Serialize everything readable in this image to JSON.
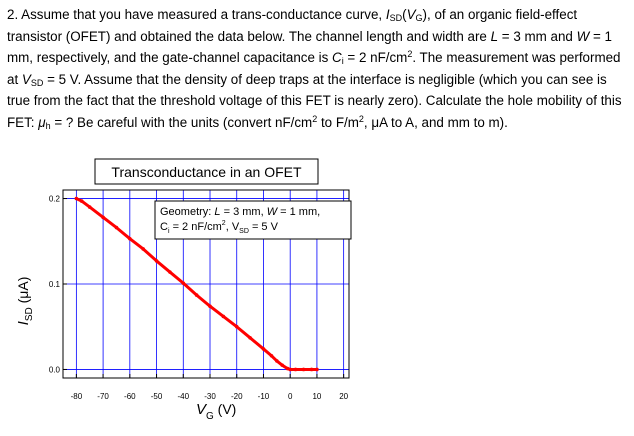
{
  "problem": {
    "number": "2.",
    "text_1": " Assume that you have measured a trans-conductance curve, ",
    "isd_sym": "I",
    "isd_sub": "SD",
    "text_2": "(",
    "vg_sym": "V",
    "vg_sub": "G",
    "text_3": "), of an organic field-effect transistor (OFET) and obtained the data below. The channel length and width are ",
    "L_sym": "L",
    "text_4": " = 3 mm and ",
    "W_sym": "W",
    "text_5": " = 1 mm, respectively, and the gate-channel capacitance is ",
    "C_sym": "C",
    "C_sub": "i",
    "text_6": " = 2 nF/cm",
    "sup2": "2",
    "text_7": ". The measurement was performed at ",
    "vsd_sym": "V",
    "vsd_sub": "SD",
    "text_8": " = 5 V. Assume that the density of deep traps at the interface is negligible (which you can see is true from the fact that the threshold voltage of this FET is nearly zero). Calculate the hole mobility of this FET: ",
    "mu_sym": "μ",
    "mu_sub": "h",
    "text_9": " = ? Be careful with the units (convert nF/cm",
    "text_10": " to F/m",
    "text_11": ", μA to A, and mm to m)."
  },
  "chart_data": {
    "type": "line",
    "title": "Transconductance in an OFET",
    "xlabel": "V",
    "xlabel_sub": "G",
    "xlabel_unit": " (V)",
    "ylabel": "I",
    "ylabel_sub": "SD",
    "ylabel_unit": " (μA)",
    "xlim": [
      -85,
      22
    ],
    "ylim": [
      -0.01,
      0.21
    ],
    "x_ticks": [
      -80,
      -70,
      -60,
      -50,
      -40,
      -30,
      -20,
      -10,
      0,
      10,
      20
    ],
    "x_tick_labels": [
      "-80",
      "-70",
      "-60",
      "-50",
      "-40",
      "-30",
      "-20",
      "-10",
      "0",
      "10",
      "20"
    ],
    "y_ticks": [
      0.0,
      0.1,
      0.2
    ],
    "y_tick_labels": [
      "0.0",
      "0.1",
      "0.2"
    ],
    "grid": true,
    "color": "#ff0000",
    "grid_color": "#0000ff",
    "series": [
      {
        "x": [
          -80,
          -78,
          -75,
          -70,
          -65,
          -60,
          -55,
          -50,
          -45,
          -40,
          -35,
          -30,
          -25,
          -20,
          -15,
          -10,
          -7,
          -5,
          -3,
          -1,
          0,
          2,
          5,
          8,
          10
        ],
        "y": [
          0.2,
          0.197,
          0.19,
          0.178,
          0.166,
          0.153,
          0.141,
          0.127,
          0.114,
          0.101,
          0.087,
          0.074,
          0.062,
          0.05,
          0.037,
          0.024,
          0.016,
          0.01,
          0.005,
          0.001,
          0.0,
          0.0,
          0.0,
          0.0,
          0.0
        ]
      }
    ],
    "annotation": {
      "line1_a": "Geometry: ",
      "line1_L": "L",
      "line1_b": " = 3 mm, ",
      "line1_W": "W",
      "line1_c": " = 1 mm,",
      "line2_C": "C",
      "line2_Csub": "i",
      "line2_a": " = 2 nF/cm",
      "line2_sup": "2",
      "line2_b": ", V",
      "line2_sub": "SD",
      "line2_c": " = 5 V"
    }
  }
}
